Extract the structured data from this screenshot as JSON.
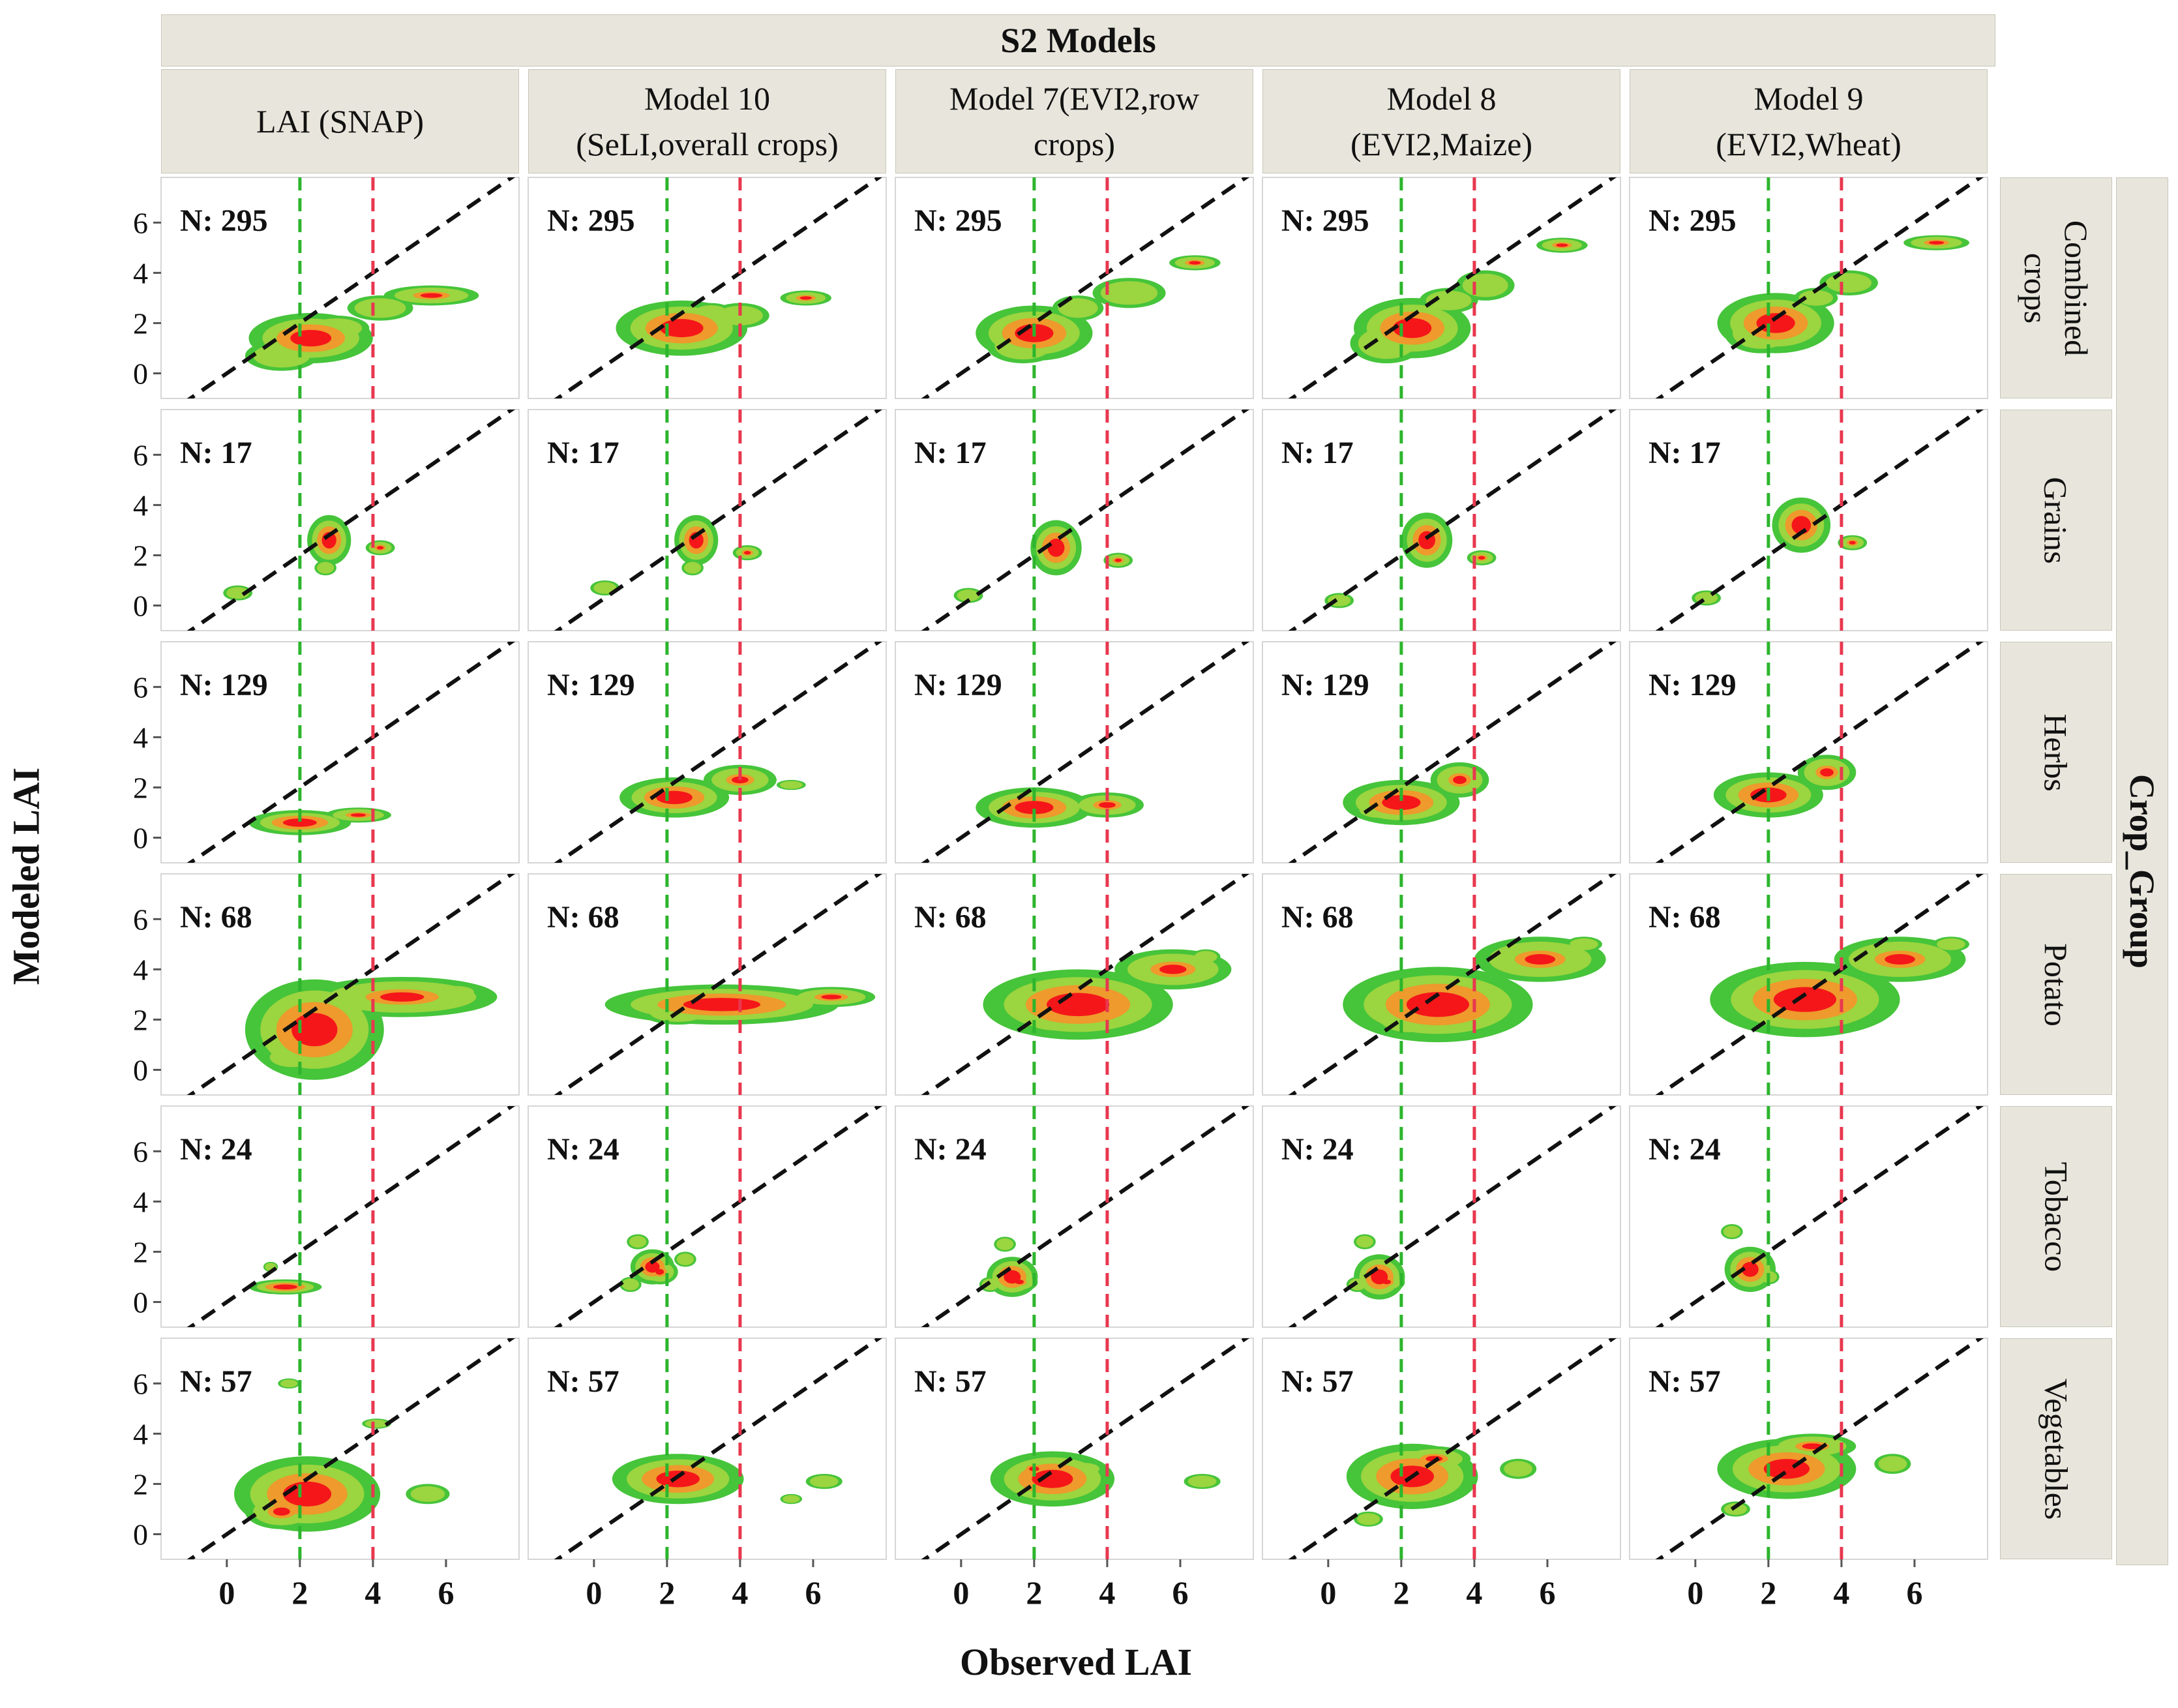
{
  "chart_data": {
    "type": "faceted-2d-density",
    "title": "S2 Models",
    "facet_col_title": "S2 Models",
    "facet_row_title": "Crop_Group",
    "xlabel": "Observed LAI",
    "ylabel": "Modeled LAI",
    "xlim": [
      -1.8,
      8.0
    ],
    "ylim": [
      -1.0,
      7.8
    ],
    "xticks": [
      0,
      2,
      4,
      6
    ],
    "yticks": [
      0,
      2,
      4,
      6
    ],
    "x_tick_labels": [
      "0",
      "2",
      "4",
      "6"
    ],
    "y_tick_labels": [
      "0",
      "2",
      "4",
      "6"
    ],
    "columns": [
      "LAI (SNAP)",
      "Model 10\n(SeLI,overall crops)",
      "Model 7(EVI2,row\ncrops)",
      "Model 8\n(EVI2,Maize)",
      "Model 9\n(EVI2,Wheat)"
    ],
    "rows": [
      "Combined\ncrops",
      "Grains",
      "Herbs",
      "Potato",
      "Tobacco",
      "Vegetables"
    ],
    "n_counts": [
      "N: 295",
      "N: 17",
      "N: 129",
      "N: 68",
      "N: 24",
      "N: 57"
    ],
    "reference_lines": {
      "one_to_one": {
        "slope": 1,
        "intercept": 0,
        "color": "#111111",
        "style": "dashed"
      },
      "vertical": [
        {
          "x": 2,
          "color": "#2db52d",
          "style": "dashed"
        },
        {
          "x": 4,
          "color": "#e8384f",
          "style": "dashed"
        }
      ]
    },
    "density_levels": [
      "low",
      "medium",
      "high",
      "peak"
    ],
    "density_colors": [
      "#46c43a",
      "#9bd53f",
      "#ee9a2c",
      "#f5161a"
    ],
    "density_blobs": [
      [
        [
          [
            2.3,
            1.4,
            1.7,
            1.0
          ],
          [
            5.6,
            3.1,
            1.3,
            0.4
          ],
          [
            4.2,
            2.6,
            0.9,
            0.5
          ],
          [
            1.5,
            0.7,
            1.0,
            0.6
          ],
          [
            3.0,
            1.8,
            0.9,
            0.5
          ]
        ],
        [
          [
            2.4,
            1.8,
            1.8,
            1.1
          ],
          [
            5.8,
            3.0,
            0.7,
            0.3
          ],
          [
            4.0,
            2.3,
            0.8,
            0.5
          ],
          [
            1.8,
            1.8,
            1.0,
            0.6
          ],
          [
            3.2,
            2.4,
            0.6,
            0.4
          ]
        ],
        [
          [
            2.0,
            1.6,
            1.6,
            1.1
          ],
          [
            6.4,
            4.4,
            0.7,
            0.3
          ],
          [
            4.6,
            3.2,
            1.0,
            0.6
          ],
          [
            1.7,
            1.1,
            1.0,
            0.7
          ],
          [
            3.2,
            2.6,
            0.7,
            0.5
          ]
        ],
        [
          [
            2.3,
            1.8,
            1.6,
            1.2
          ],
          [
            6.4,
            5.1,
            0.7,
            0.3
          ],
          [
            4.3,
            3.5,
            0.8,
            0.6
          ],
          [
            1.6,
            1.2,
            1.0,
            0.8
          ],
          [
            3.3,
            2.9,
            0.8,
            0.5
          ]
        ],
        [
          [
            2.2,
            2.0,
            1.6,
            1.2
          ],
          [
            6.6,
            5.2,
            0.9,
            0.3
          ],
          [
            4.2,
            3.6,
            0.8,
            0.5
          ],
          [
            1.8,
            1.6,
            1.0,
            0.8
          ],
          [
            3.3,
            3.0,
            0.6,
            0.4
          ]
        ]
      ],
      [
        [
          [
            2.8,
            2.6,
            0.6,
            1.0
          ],
          [
            4.2,
            2.3,
            0.4,
            0.3
          ],
          [
            0.3,
            0.5,
            0.4,
            0.3
          ],
          [
            2.8,
            2.5,
            0.4,
            0.8
          ],
          [
            2.7,
            1.5,
            0.3,
            0.3
          ]
        ],
        [
          [
            2.8,
            2.6,
            0.6,
            1.0
          ],
          [
            4.2,
            2.1,
            0.4,
            0.3
          ],
          [
            0.3,
            0.7,
            0.4,
            0.3
          ],
          [
            2.8,
            2.6,
            0.3,
            0.7
          ],
          [
            2.7,
            1.5,
            0.3,
            0.3
          ]
        ],
        [
          [
            2.6,
            2.3,
            0.7,
            1.1
          ],
          [
            4.3,
            1.8,
            0.4,
            0.3
          ],
          [
            0.2,
            0.4,
            0.4,
            0.3
          ],
          [
            2.8,
            2.5,
            0.3,
            0.7
          ]
        ],
        [
          [
            2.7,
            2.6,
            0.7,
            1.1
          ],
          [
            4.2,
            1.9,
            0.4,
            0.3
          ],
          [
            0.3,
            0.2,
            0.4,
            0.3
          ],
          [
            2.8,
            2.7,
            0.3,
            0.7
          ]
        ],
        [
          [
            2.9,
            3.2,
            0.8,
            1.1
          ],
          [
            4.3,
            2.5,
            0.4,
            0.3
          ],
          [
            0.3,
            0.3,
            0.4,
            0.3
          ],
          [
            3.0,
            3.3,
            0.3,
            0.6
          ]
        ]
      ],
      [
        [
          [
            2.0,
            0.6,
            1.4,
            0.5
          ],
          [
            3.6,
            0.9,
            0.9,
            0.3
          ],
          [
            1.5,
            0.6,
            0.7,
            0.3
          ]
        ],
        [
          [
            2.2,
            1.6,
            1.5,
            0.8
          ],
          [
            4.0,
            2.3,
            1.0,
            0.6
          ],
          [
            5.4,
            2.1,
            0.4,
            0.2
          ],
          [
            1.6,
            1.5,
            0.7,
            0.3
          ]
        ],
        [
          [
            2.0,
            1.2,
            1.6,
            0.8
          ],
          [
            4.0,
            1.3,
            1.0,
            0.5
          ],
          [
            1.6,
            1.1,
            0.7,
            0.4
          ]
        ],
        [
          [
            2.0,
            1.4,
            1.6,
            0.9
          ],
          [
            3.6,
            2.3,
            0.8,
            0.7
          ],
          [
            1.4,
            1.1,
            0.7,
            0.4
          ]
        ],
        [
          [
            2.0,
            1.7,
            1.5,
            0.9
          ],
          [
            3.6,
            2.6,
            0.8,
            0.7
          ],
          [
            1.6,
            1.6,
            0.7,
            0.4
          ]
        ]
      ],
      [
        [
          [
            2.4,
            1.6,
            1.9,
            2.0
          ],
          [
            4.8,
            2.9,
            2.6,
            0.8
          ],
          [
            1.9,
            2.4,
            0.8,
            0.5
          ],
          [
            1.8,
            0.5,
            0.8,
            0.5
          ],
          [
            4.6,
            2.9,
            0.6,
            0.4
          ],
          [
            6.3,
            3.1,
            0.6,
            0.3
          ]
        ],
        [
          [
            3.5,
            2.6,
            3.2,
            0.8
          ],
          [
            6.5,
            2.9,
            1.2,
            0.4
          ],
          [
            2.3,
            2.3,
            1.0,
            0.5
          ],
          [
            4.0,
            2.5,
            0.7,
            0.4
          ]
        ],
        [
          [
            3.2,
            2.6,
            2.6,
            1.4
          ],
          [
            5.8,
            4.0,
            1.6,
            0.8
          ],
          [
            2.5,
            2.2,
            1.0,
            0.8
          ],
          [
            6.7,
            4.5,
            0.4,
            0.3
          ]
        ],
        [
          [
            3.0,
            2.6,
            2.6,
            1.5
          ],
          [
            5.8,
            4.4,
            1.8,
            0.9
          ],
          [
            2.2,
            2.2,
            1.1,
            0.9
          ],
          [
            7.0,
            5.0,
            0.5,
            0.3
          ]
        ],
        [
          [
            3.0,
            2.8,
            2.6,
            1.5
          ],
          [
            5.6,
            4.4,
            1.8,
            0.9
          ],
          [
            2.2,
            2.6,
            1.2,
            0.9
          ],
          [
            7.0,
            5.0,
            0.5,
            0.3
          ]
        ]
      ],
      [
        [
          [
            1.6,
            0.6,
            1.0,
            0.3
          ],
          [
            1.6,
            0.6,
            0.6,
            0.2
          ],
          [
            1.2,
            1.4,
            0.2,
            0.2
          ]
        ],
        [
          [
            1.6,
            1.4,
            0.6,
            0.7
          ],
          [
            1.8,
            1.2,
            0.5,
            0.5
          ],
          [
            1.0,
            0.7,
            0.3,
            0.3
          ],
          [
            2.5,
            1.7,
            0.3,
            0.3
          ],
          [
            1.2,
            2.4,
            0.3,
            0.3
          ]
        ],
        [
          [
            1.4,
            1.0,
            0.7,
            0.8
          ],
          [
            1.6,
            0.8,
            0.5,
            0.4
          ],
          [
            0.8,
            0.7,
            0.3,
            0.3
          ],
          [
            1.2,
            2.3,
            0.3,
            0.3
          ]
        ],
        [
          [
            1.4,
            1.0,
            0.7,
            0.9
          ],
          [
            1.6,
            0.8,
            0.5,
            0.4
          ],
          [
            0.8,
            0.7,
            0.3,
            0.3
          ],
          [
            1.0,
            2.4,
            0.3,
            0.3
          ]
        ],
        [
          [
            1.5,
            1.3,
            0.7,
            0.9
          ],
          [
            1.5,
            1.2,
            0.4,
            0.6
          ],
          [
            1.0,
            2.8,
            0.3,
            0.3
          ],
          [
            2.0,
            1.0,
            0.3,
            0.3
          ]
        ]
      ],
      [
        [
          [
            2.2,
            1.6,
            2.0,
            1.5
          ],
          [
            1.5,
            0.9,
            1.0,
            0.7
          ],
          [
            5.5,
            1.6,
            0.6,
            0.4
          ],
          [
            1.7,
            6.0,
            0.3,
            0.2
          ],
          [
            4.1,
            4.4,
            0.4,
            0.2
          ]
        ],
        [
          [
            2.3,
            2.2,
            1.8,
            1.0
          ],
          [
            2.2,
            2.4,
            1.0,
            0.5
          ],
          [
            6.3,
            2.1,
            0.5,
            0.3
          ],
          [
            5.4,
            1.4,
            0.3,
            0.2
          ]
        ],
        [
          [
            2.5,
            2.2,
            1.7,
            1.1
          ],
          [
            2.0,
            2.6,
            0.6,
            0.4
          ],
          [
            6.6,
            2.1,
            0.5,
            0.3
          ],
          [
            3.4,
            2.6,
            0.5,
            0.3
          ]
        ],
        [
          [
            2.3,
            2.3,
            1.8,
            1.3
          ],
          [
            2.9,
            3.0,
            1.0,
            0.5
          ],
          [
            5.2,
            2.6,
            0.5,
            0.4
          ],
          [
            1.1,
            0.6,
            0.4,
            0.3
          ]
        ],
        [
          [
            2.5,
            2.6,
            1.9,
            1.2
          ],
          [
            3.2,
            3.5,
            1.2,
            0.5
          ],
          [
            5.4,
            2.8,
            0.5,
            0.4
          ],
          [
            1.1,
            1.0,
            0.4,
            0.3
          ]
        ]
      ]
    ]
  }
}
